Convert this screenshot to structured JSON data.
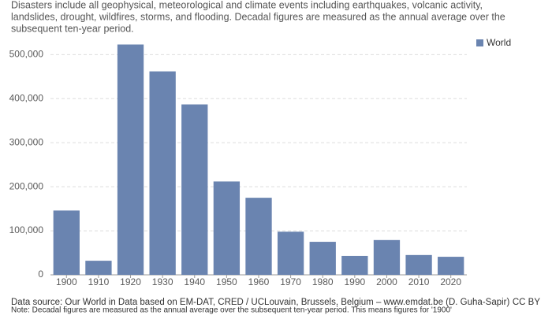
{
  "chart_data": {
    "type": "bar",
    "subtitle_lines": [
      "Disasters include all geophysical, meteorological and climate events including earthquakes, volcanic activity,",
      "landslides, drought, wildfires, storms, and flooding. Decadal figures are measured as the annual average over the",
      "subsequent ten-year period."
    ],
    "categories": [
      "1900",
      "1910",
      "1920",
      "1930",
      "1940",
      "1950",
      "1960",
      "1970",
      "1980",
      "1990",
      "2000",
      "2010",
      "2020"
    ],
    "series": [
      {
        "name": "World",
        "color": "#6a84b0",
        "values": [
          146000,
          32000,
          523000,
          462000,
          387000,
          212000,
          175000,
          98000,
          75000,
          43000,
          79000,
          45000,
          41000
        ]
      }
    ],
    "ylim": [
      0,
      540000
    ],
    "yticks": [
      0,
      {
        "value": 100000,
        "label": "100,000"
      },
      {
        "value": 200000,
        "label": "200,000"
      },
      {
        "value": 300000,
        "label": "300,000"
      },
      {
        "value": 400000,
        "label": "400,000"
      },
      {
        "value": 500000,
        "label": "500,000"
      }
    ],
    "grid": true,
    "legend": "top-right",
    "source": "Data source: Our World in Data based on EM-DAT, CRED / UCLouvain, Brussels, Belgium – www.emdat.be (D. Guha-Sapir)",
    "license": "CC BY",
    "note": "Note: Decadal figures are measured as the annual average over the subsequent ten-year period. This means figures for '1900'"
  }
}
